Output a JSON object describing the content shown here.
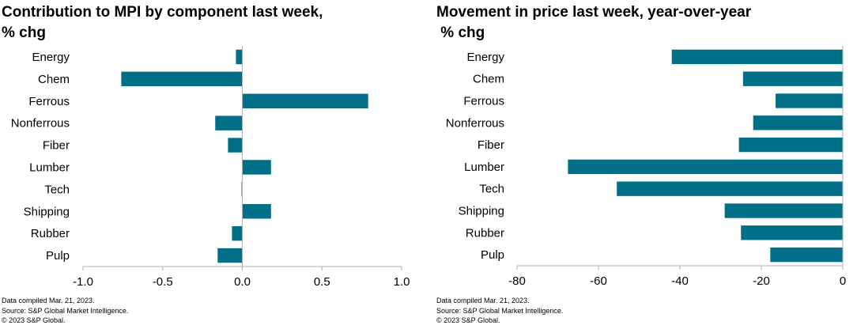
{
  "colors": {
    "bar": "#006f87",
    "axis": "#b0b0b0"
  },
  "chart_data": [
    {
      "type": "bar",
      "orientation": "horizontal",
      "title": "Contribution to MPI by component last week,\n% chg",
      "categories": [
        "Energy",
        "Chem",
        "Ferrous",
        "Nonferrous",
        "Fiber",
        "Lumber",
        "Tech",
        "Shipping",
        "Rubber",
        "Pulp"
      ],
      "values": [
        -0.04,
        -0.76,
        0.79,
        -0.17,
        -0.09,
        0.18,
        -0.005,
        0.18,
        -0.065,
        -0.155
      ],
      "xlim": [
        -1.0,
        1.0
      ],
      "ticks": [
        -1.0,
        -0.5,
        0.0,
        0.5,
        1.0
      ],
      "tick_labels": [
        "-1.0",
        "-0.5",
        "0.0",
        "0.5",
        "1.0"
      ],
      "grid": false,
      "footer": [
        "Data compiled Mar. 21, 2023.",
        "Source: S&P Global Market Intelligence.",
        "© 2023 S&P Global."
      ]
    },
    {
      "type": "bar",
      "orientation": "horizontal",
      "title": "Movement in price last week, year-over-year\n % chg",
      "categories": [
        "Energy",
        "Chem",
        "Ferrous",
        "Nonferrous",
        "Fiber",
        "Lumber",
        "Tech",
        "Shipping",
        "Rubber",
        "Pulp"
      ],
      "values": [
        -42,
        -24.5,
        -16.5,
        -22,
        -25.5,
        -67.5,
        -55.5,
        -29,
        -25,
        -17.8
      ],
      "xlim": [
        -80,
        0
      ],
      "ticks": [
        -80,
        -60,
        -40,
        -20,
        0
      ],
      "tick_labels": [
        "-80",
        "-60",
        "-40",
        "-20",
        "0"
      ],
      "grid": false,
      "footer": [
        "Data compiled Mar. 21, 2023.",
        "Source: S&P Global Market Intelligence.",
        "© 2023 S&P Global."
      ]
    }
  ]
}
